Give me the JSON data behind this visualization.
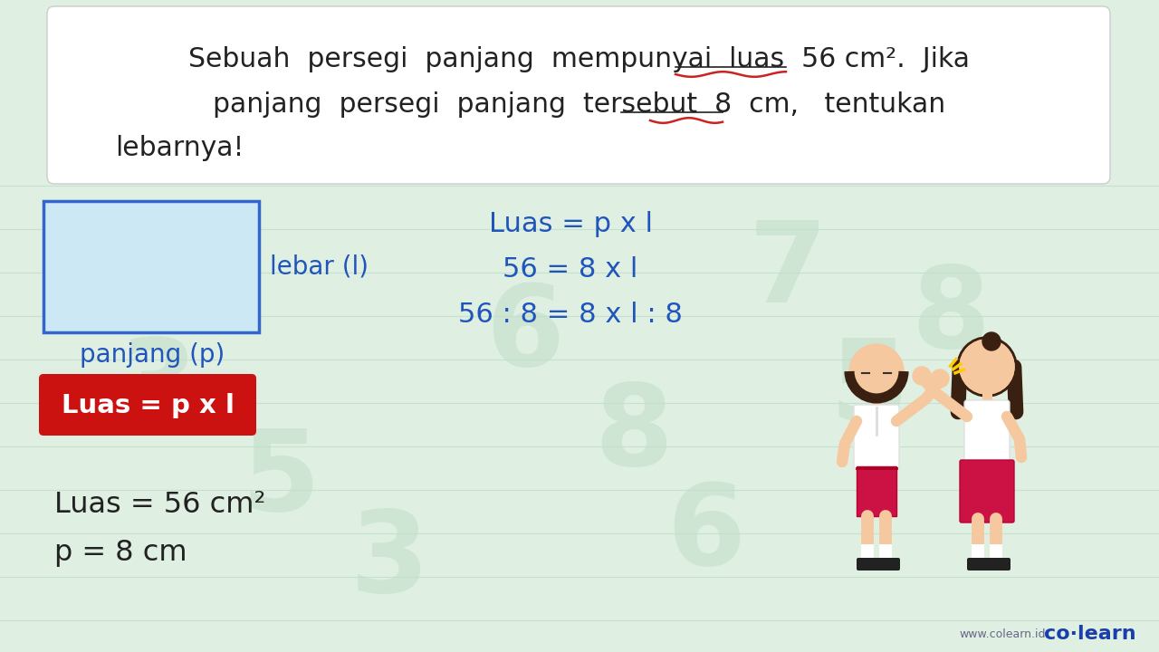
{
  "bg_color": "#dff0e3",
  "title_box_color": "#ffffff",
  "text_color_dark": "#222222",
  "blue_color": "#2255bb",
  "red_box_color": "#cc1111",
  "rect_stroke": "#3366cc",
  "rect_fill": "#cce8f4",
  "line_color": "#b8d8c0",
  "formula_lines": [
    "Luas = p x l",
    "56 = 8 x l",
    "56 : 8 = 8 x l : 8"
  ],
  "colearn_blue": "#1a3faa",
  "website_color": "#666688",
  "wm_color": "#c0ddc8"
}
